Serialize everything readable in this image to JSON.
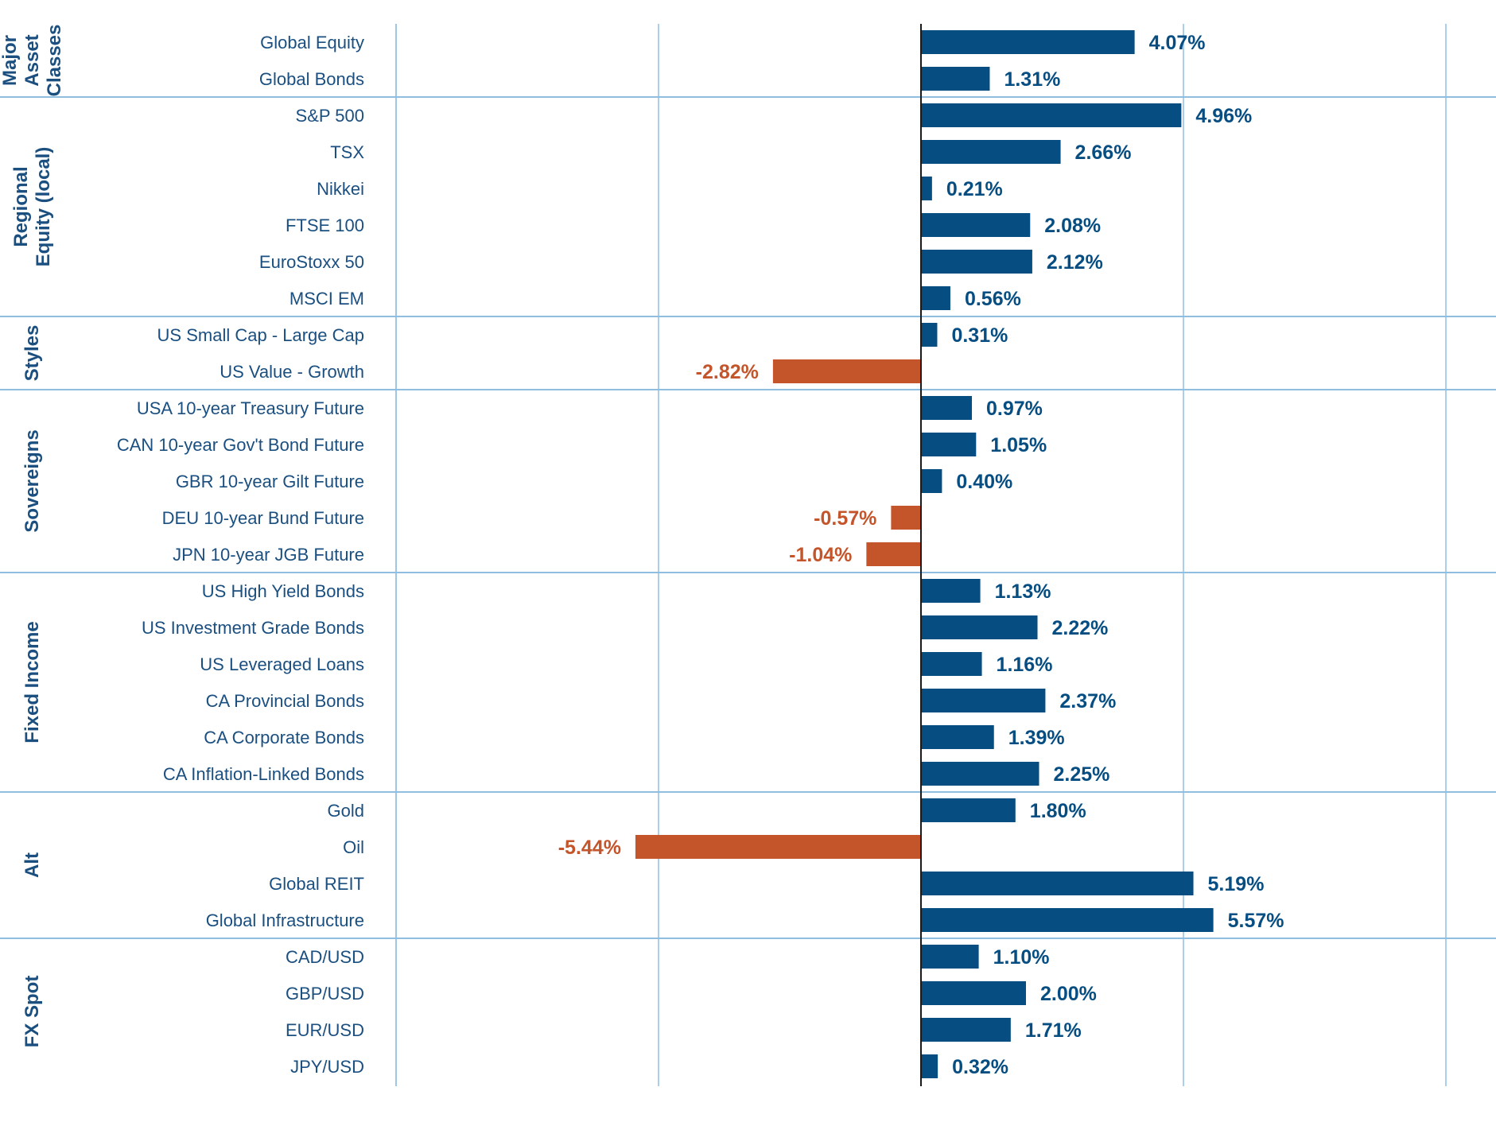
{
  "chart_data": {
    "type": "bar",
    "orientation": "horizontal",
    "unit": "%",
    "xlim": [
      -7.5,
      7.5
    ],
    "x_gridlines": [
      -5,
      0,
      5
    ],
    "colors": {
      "positive": "#064d82",
      "negative": "#c4542a",
      "grid": "#8fbfe0",
      "text": "#1a4f80"
    },
    "groups": [
      {
        "name": "Major Asset Classes",
        "name_lines": [
          "Major",
          "Asset",
          "Classes"
        ],
        "items": [
          {
            "label": "Global Equity",
            "value": 4.07,
            "display": "4.07%"
          },
          {
            "label": "Global Bonds",
            "value": 1.31,
            "display": "1.31%"
          }
        ]
      },
      {
        "name": "Regional Equity (local)",
        "name_lines": [
          "Regional",
          "Equity (local)"
        ],
        "items": [
          {
            "label": "S&P 500",
            "value": 4.96,
            "display": "4.96%"
          },
          {
            "label": "TSX",
            "value": 2.66,
            "display": "2.66%"
          },
          {
            "label": "Nikkei",
            "value": 0.21,
            "display": "0.21%"
          },
          {
            "label": "FTSE 100",
            "value": 2.08,
            "display": "2.08%"
          },
          {
            "label": "EuroStoxx 50",
            "value": 2.12,
            "display": "2.12%"
          },
          {
            "label": "MSCI EM",
            "value": 0.56,
            "display": "0.56%"
          }
        ]
      },
      {
        "name": "Styles",
        "name_lines": [
          "Styles"
        ],
        "items": [
          {
            "label": "US Small Cap - Large Cap",
            "value": 0.31,
            "display": "0.31%"
          },
          {
            "label": "US Value - Growth",
            "value": -2.82,
            "display": "-2.82%"
          }
        ]
      },
      {
        "name": "Sovereigns",
        "name_lines": [
          "Sovereigns"
        ],
        "items": [
          {
            "label": "USA 10-year Treasury Future",
            "value": 0.97,
            "display": "0.97%"
          },
          {
            "label": "CAN 10-year Gov't Bond Future",
            "value": 1.05,
            "display": "1.05%"
          },
          {
            "label": "GBR 10-year Gilt Future",
            "value": 0.4,
            "display": "0.40%"
          },
          {
            "label": "DEU 10-year Bund Future",
            "value": -0.57,
            "display": "-0.57%"
          },
          {
            "label": "JPN 10-year JGB Future",
            "value": -1.04,
            "display": "-1.04%"
          }
        ]
      },
      {
        "name": "Fixed Income",
        "name_lines": [
          "Fixed Income"
        ],
        "items": [
          {
            "label": "US High Yield Bonds",
            "value": 1.13,
            "display": "1.13%"
          },
          {
            "label": "US Investment Grade Bonds",
            "value": 2.22,
            "display": "2.22%"
          },
          {
            "label": "US Leveraged Loans",
            "value": 1.16,
            "display": "1.16%"
          },
          {
            "label": "CA Provincial Bonds",
            "value": 2.37,
            "display": "2.37%"
          },
          {
            "label": "CA Corporate Bonds",
            "value": 1.39,
            "display": "1.39%"
          },
          {
            "label": "CA Inflation-Linked Bonds",
            "value": 2.25,
            "display": "2.25%"
          }
        ]
      },
      {
        "name": "Alt",
        "name_lines": [
          "Alt"
        ],
        "items": [
          {
            "label": "Gold",
            "value": 1.8,
            "display": "1.80%"
          },
          {
            "label": "Oil",
            "value": -5.44,
            "display": "-5.44%"
          },
          {
            "label": "Global REIT",
            "value": 5.19,
            "display": "5.19%"
          },
          {
            "label": "Global Infrastructure",
            "value": 5.57,
            "display": "5.57%"
          }
        ]
      },
      {
        "name": "FX Spot",
        "name_lines": [
          "FX Spot"
        ],
        "items": [
          {
            "label": "CAD/USD",
            "value": 1.1,
            "display": "1.10%"
          },
          {
            "label": "GBP/USD",
            "value": 2.0,
            "display": "2.00%"
          },
          {
            "label": "EUR/USD",
            "value": 1.71,
            "display": "1.71%"
          },
          {
            "label": "JPY/USD",
            "value": 0.32,
            "display": "0.32%"
          }
        ]
      }
    ]
  }
}
